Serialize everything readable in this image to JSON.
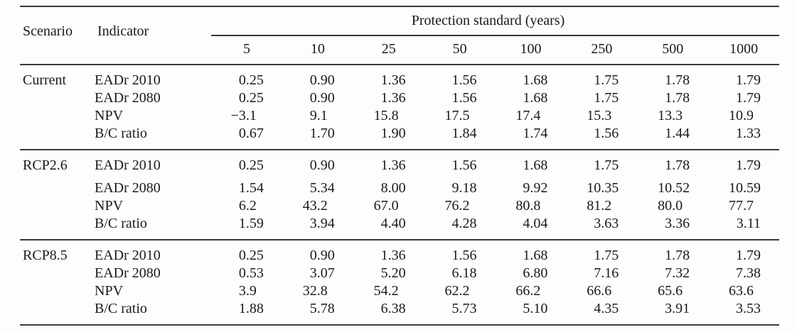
{
  "colors": {
    "background": "#fdfdfd",
    "text": "#1a1a1a",
    "rule": "#3a3a3a"
  },
  "table": {
    "header": {
      "scenario": "Scenario",
      "indicator": "Indicator",
      "group": "Protection standard (years)",
      "standards": [
        "5",
        "10",
        "25",
        "50",
        "100",
        "250",
        "500",
        "1000"
      ]
    },
    "blocks": [
      {
        "scenario": "Current",
        "rows": [
          {
            "indicator": "EADr 2010",
            "values": [
              "0.25",
              "0.90",
              "1.36",
              "1.56",
              "1.68",
              "1.75",
              "1.78",
              "1.79"
            ]
          },
          {
            "indicator": "EADr 2080",
            "values": [
              "0.25",
              "0.90",
              "1.36",
              "1.56",
              "1.68",
              "1.75",
              "1.78",
              "1.79"
            ]
          },
          {
            "indicator": "NPV",
            "values": [
              "−3.1",
              "9.1",
              "15.8",
              "17.5",
              "17.4",
              "15.3",
              "13.3",
              "10.9"
            ]
          },
          {
            "indicator": "B/C ratio",
            "values": [
              "0.67",
              "1.70",
              "1.90",
              "1.84",
              "1.74",
              "1.56",
              "1.44",
              "1.33"
            ]
          }
        ]
      },
      {
        "scenario": "RCP2.6",
        "rows": [
          {
            "indicator": "EADr 2010",
            "values": [
              "0.25",
              "0.90",
              "1.36",
              "1.56",
              "1.68",
              "1.75",
              "1.78",
              "1.79"
            ]
          },
          {
            "indicator": "EADr 2080",
            "values": [
              "1.54",
              "5.34",
              "8.00",
              "9.18",
              "9.92",
              "10.35",
              "10.52",
              "10.59"
            ]
          },
          {
            "indicator": "NPV",
            "values": [
              "6.2",
              "43.2",
              "67.0",
              "76.2",
              "80.8",
              "81.2",
              "80.0",
              "77.7"
            ]
          },
          {
            "indicator": "B/C ratio",
            "values": [
              "1.59",
              "3.94",
              "4.40",
              "4.28",
              "4.04",
              "3.63",
              "3.36",
              "3.11"
            ]
          }
        ]
      },
      {
        "scenario": "RCP8.5",
        "rows": [
          {
            "indicator": "EADr 2010",
            "values": [
              "0.25",
              "0.90",
              "1.36",
              "1.56",
              "1.68",
              "1.75",
              "1.78",
              "1.79"
            ]
          },
          {
            "indicator": "EADr 2080",
            "values": [
              "0.53",
              "3.07",
              "5.20",
              "6.18",
              "6.80",
              "7.16",
              "7.32",
              "7.38"
            ]
          },
          {
            "indicator": "NPV",
            "values": [
              "3.9",
              "32.8",
              "54.2",
              "62.2",
              "66.2",
              "66.6",
              "65.6",
              "63.6"
            ]
          },
          {
            "indicator": "B/C ratio",
            "values": [
              "1.88",
              "5.78",
              "6.38",
              "5.73",
              "5.10",
              "4.35",
              "3.91",
              "3.53"
            ]
          }
        ]
      }
    ]
  }
}
